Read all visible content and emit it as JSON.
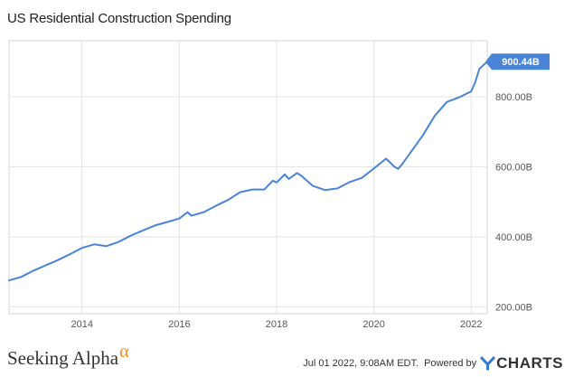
{
  "chart_data": {
    "type": "line",
    "title": "US Residential Construction Spending",
    "x_ticks": [
      "2014",
      "2016",
      "2018",
      "2020",
      "2022"
    ],
    "y_ticks": [
      "200.00B",
      "400.00B",
      "600.00B",
      "800.00B"
    ],
    "ylim": [
      180,
      960
    ],
    "xlim": [
      2012.5,
      2022.33
    ],
    "grid": true,
    "last_value_label": "900.44B",
    "series": [
      {
        "color": "#4a84d6",
        "x": [
          2012.5,
          2012.75,
          2013.0,
          2013.25,
          2013.5,
          2013.75,
          2014.0,
          2014.25,
          2014.5,
          2014.75,
          2015.0,
          2015.25,
          2015.5,
          2015.75,
          2016.0,
          2016.17,
          2016.25,
          2016.5,
          2016.75,
          2017.0,
          2017.25,
          2017.5,
          2017.75,
          2017.92,
          2018.0,
          2018.17,
          2018.25,
          2018.42,
          2018.5,
          2018.75,
          2019.0,
          2019.25,
          2019.5,
          2019.75,
          2020.0,
          2020.25,
          2020.42,
          2020.5,
          2020.58,
          2020.75,
          2021.0,
          2021.25,
          2021.5,
          2021.75,
          2022.0,
          2022.08,
          2022.17,
          2022.33
        ],
        "values": [
          275,
          285,
          303,
          318,
          333,
          350,
          368,
          378,
          373,
          385,
          403,
          418,
          432,
          442,
          452,
          470,
          460,
          470,
          488,
          505,
          527,
          535,
          535,
          560,
          555,
          578,
          565,
          582,
          575,
          545,
          533,
          538,
          556,
          568,
          595,
          623,
          600,
          594,
          607,
          640,
          688,
          745,
          785,
          798,
          815,
          840,
          880,
          900
        ]
      }
    ]
  },
  "brand": {
    "name": "Seeking Alpha",
    "mark": "α"
  },
  "footer": {
    "timestamp": "Jul 01 2022, 9:08AM EDT.",
    "powered_by": "Powered by",
    "provider": "CHARTS"
  },
  "colors": {
    "line": "#4a84d6",
    "grid": "#e3e3e3",
    "accent": "#f28d1e",
    "ycharts_blue": "#2f7bd1"
  }
}
